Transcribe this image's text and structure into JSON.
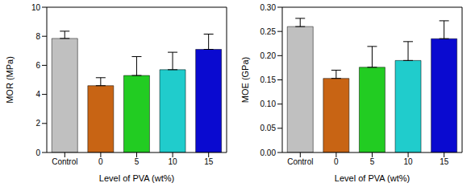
{
  "chart_data": [
    {
      "type": "bar",
      "x_label": "Level of PVA (wt%)",
      "y_label": "MOR (MPa)",
      "categories": [
        "Control",
        "0",
        "5",
        "10",
        "15"
      ],
      "values": [
        7.85,
        4.6,
        5.3,
        5.7,
        7.1
      ],
      "errors": [
        0.5,
        0.55,
        1.3,
        1.2,
        1.05
      ],
      "colors": [
        "#c0c0c0",
        "#c86414",
        "#22cc22",
        "#20cccc",
        "#0a0ad0"
      ],
      "ylim": [
        0,
        10
      ],
      "yticks": [
        0,
        2,
        4,
        6,
        8,
        10
      ]
    },
    {
      "type": "bar",
      "x_label": "Level of PVA (wt%)",
      "y_label": "MOE (GPa)",
      "categories": [
        "Control",
        "0",
        "5",
        "10",
        "15"
      ],
      "values": [
        0.26,
        0.153,
        0.176,
        0.19,
        0.235
      ],
      "errors": [
        0.017,
        0.017,
        0.043,
        0.039,
        0.037
      ],
      "colors": [
        "#c0c0c0",
        "#c86414",
        "#22cc22",
        "#20cccc",
        "#0a0ad0"
      ],
      "ylim": [
        0,
        0.3
      ],
      "yticks": [
        {
          "value": 0,
          "label": "0.00"
        },
        {
          "value": 0.05,
          "label": "0.05"
        },
        {
          "value": 0.1,
          "label": "0.10"
        },
        {
          "value": 0.15,
          "label": "0.15"
        },
        {
          "value": 0.2,
          "label": "0.20"
        },
        {
          "value": 0.25,
          "label": "0.25"
        },
        {
          "value": 0.3,
          "label": "0.30"
        }
      ]
    }
  ]
}
